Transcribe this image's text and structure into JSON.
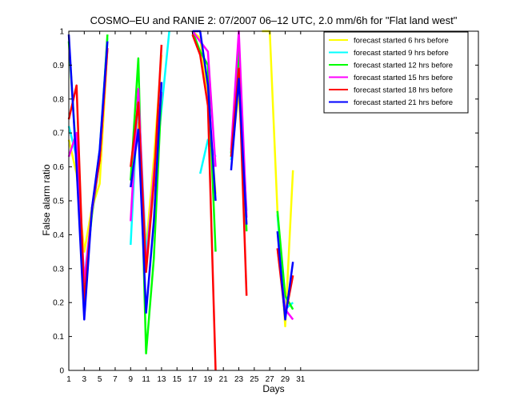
{
  "chart_data": {
    "type": "line",
    "title": "COSMO–EU and RANIE 2: 07/2007 06–12 UTC, 2.0 mm/6h for \"Flat land west\"",
    "xlabel": "Days",
    "ylabel": "False alarm ratio",
    "xlim": [
      1,
      54
    ],
    "ylim": [
      0,
      1
    ],
    "xticks": [
      1,
      3,
      5,
      7,
      9,
      11,
      13,
      15,
      17,
      19,
      21,
      23,
      25,
      27,
      29,
      31
    ],
    "yticks": [
      0,
      0.1,
      0.2,
      0.3,
      0.4,
      0.5,
      0.6,
      0.7,
      0.8,
      0.9,
      1
    ],
    "ytick_labels": [
      "0",
      "0.1",
      "0.2",
      "0.3",
      "0.4",
      "0.5",
      "0.6",
      "0.7",
      "0.8",
      "0.9",
      "1"
    ],
    "legend_position": "top-right",
    "grid": false,
    "series": [
      {
        "name": "forecast started 6 hrs before",
        "color": "#ffff00",
        "x": [
          1,
          2,
          3,
          4,
          5,
          6,
          null,
          9,
          10,
          11,
          12,
          13,
          null,
          17,
          18,
          19,
          20,
          null,
          22,
          23,
          24,
          null,
          26,
          27,
          28,
          29,
          30
        ],
        "y": [
          0.68,
          0.58,
          0.35,
          0.48,
          0.55,
          0.95,
          null,
          0.56,
          0.73,
          0.36,
          0.62,
          0.93,
          null,
          1.0,
          0.98,
          0.8,
          0.52,
          null,
          0.63,
          0.82,
          0.43,
          null,
          1.0,
          1.0,
          0.47,
          0.13,
          0.59
        ]
      },
      {
        "name": "forecast started 9 hrs before",
        "color": "#00ffff",
        "x": [
          1,
          2,
          3,
          4,
          5,
          6,
          null,
          9,
          10,
          11,
          12,
          13,
          14,
          null,
          18,
          19,
          20,
          null,
          22,
          23,
          24,
          null,
          28,
          29,
          30
        ],
        "y": [
          0.72,
          0.63,
          0.27,
          0.47,
          0.65,
          0.98,
          null,
          0.37,
          0.82,
          0.34,
          0.55,
          0.77,
          1.0,
          null,
          0.58,
          0.68,
          0.63,
          null,
          0.62,
          0.87,
          0.47,
          null,
          0.46,
          0.18,
          0.2
        ]
      },
      {
        "name": "forecast started 12 hrs before",
        "color": "#00ff00",
        "x": [
          1,
          2,
          3,
          4,
          5,
          6,
          null,
          9,
          10,
          11,
          12,
          13,
          null,
          17,
          18,
          19,
          20,
          null,
          22,
          23,
          24,
          null,
          28,
          29,
          30
        ],
        "y": [
          0.97,
          0.62,
          0.24,
          0.46,
          0.62,
          0.99,
          null,
          0.56,
          0.92,
          0.05,
          0.33,
          0.82,
          null,
          1.0,
          0.94,
          0.9,
          0.35,
          null,
          0.64,
          0.95,
          0.41,
          null,
          0.47,
          0.22,
          0.18
        ]
      },
      {
        "name": "forecast started 15 hrs before",
        "color": "#ff00ff",
        "x": [
          1,
          2,
          3,
          4,
          5,
          6,
          null,
          9,
          10,
          11,
          12,
          13,
          null,
          17,
          18,
          19,
          20,
          null,
          22,
          23,
          24,
          null,
          28,
          29,
          30
        ],
        "y": [
          0.63,
          0.7,
          0.26,
          0.47,
          0.62,
          0.95,
          null,
          0.44,
          0.83,
          0.3,
          0.58,
          0.82,
          null,
          1.0,
          0.97,
          0.94,
          0.6,
          null,
          0.65,
          1.0,
          0.45,
          null,
          0.36,
          0.18,
          0.15
        ]
      },
      {
        "name": "forecast started 18 hrs before",
        "color": "#ff0000",
        "x": [
          1,
          2,
          3,
          4,
          5,
          6,
          null,
          9,
          10,
          11,
          12,
          13,
          null,
          17,
          18,
          19,
          20,
          null,
          22,
          23,
          24,
          null,
          28,
          29,
          30
        ],
        "y": [
          0.74,
          0.84,
          0.2,
          0.48,
          0.62,
          0.95,
          null,
          0.6,
          0.79,
          0.29,
          0.55,
          0.96,
          null,
          0.99,
          0.93,
          0.78,
          0.0,
          null,
          0.63,
          0.89,
          0.22,
          null,
          0.36,
          0.16,
          0.28
        ]
      },
      {
        "name": "forecast started 21 hrs before",
        "color": "#0000ff",
        "x": [
          1,
          2,
          3,
          4,
          5,
          6,
          null,
          9,
          10,
          11,
          12,
          13,
          null,
          17,
          18,
          19,
          20,
          null,
          22,
          23,
          24,
          null,
          28,
          29,
          30
        ],
        "y": [
          0.99,
          0.6,
          0.15,
          0.48,
          0.65,
          0.97,
          null,
          0.54,
          0.71,
          0.17,
          0.44,
          0.85,
          null,
          1.0,
          1.0,
          0.84,
          0.5,
          null,
          0.59,
          0.86,
          0.43,
          null,
          0.41,
          0.15,
          0.32
        ]
      }
    ]
  }
}
